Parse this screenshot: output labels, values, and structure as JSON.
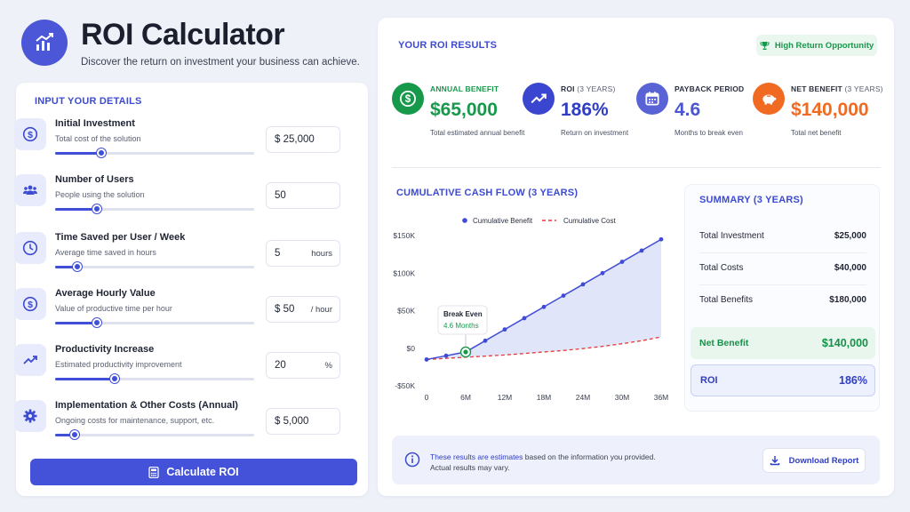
{
  "header": {
    "title": "ROI Calculator",
    "subtitle": "Discover the return on investment your business can achieve."
  },
  "inputs": {
    "section_title": "INPUT YOUR DETAILS",
    "items": [
      {
        "label": "Initial Investment",
        "desc": "Total cost of the solution",
        "value": "$ 25,000",
        "unit": "",
        "slider": 0.23,
        "icon": "dollar-icon"
      },
      {
        "label": "Number of Users",
        "desc": "People using the solution",
        "value": "50",
        "unit": "",
        "slider": 0.21,
        "icon": "users-icon"
      },
      {
        "label": "Time Saved per User / Week",
        "desc": "Average time saved in hours",
        "value": "5",
        "unit": "hours",
        "slider": 0.11,
        "icon": "clock-icon"
      },
      {
        "label": "Average Hourly Value",
        "desc": "Value of productive time per hour",
        "value": "$ 50",
        "unit": "/ hour",
        "slider": 0.21,
        "icon": "dollar-icon"
      },
      {
        "label": "Productivity Increase",
        "desc": "Estimated productivity improvement",
        "value": "20",
        "unit": "%",
        "slider": 0.3,
        "icon": "trend-up-icon"
      },
      {
        "label": "Implementation & Other Costs (Annual)",
        "desc": "Ongoing costs for maintenance, support, etc.",
        "value": "$ 5,000",
        "unit": "",
        "slider": 0.1,
        "icon": "gear-icon"
      }
    ],
    "calculate_label": "Calculate ROI"
  },
  "results": {
    "section_title": "YOUR ROI RESULTS",
    "badge": "High Return Opportunity",
    "metrics": [
      {
        "label": "ANNUAL BENEFIT",
        "label_suffix": "",
        "value": "$65,000",
        "desc": "Total estimated annual benefit",
        "color": "#17994b",
        "icon": "dollar-icon"
      },
      {
        "label": "ROI",
        "label_suffix": "(3 YEARS)",
        "value": "186%",
        "desc": "Return on investment",
        "color": "#2f3dc4",
        "icon": "trend-up-icon"
      },
      {
        "label": "PAYBACK PERIOD",
        "label_suffix": "",
        "value": "4.6",
        "desc": "Months to break even",
        "color": "#4a55cf",
        "icon": "calendar-icon"
      },
      {
        "label": "NET BENEFIT",
        "label_suffix": "(3 YEARS)",
        "value": "$140,000",
        "desc": "Total net benefit",
        "color": "#f06a22",
        "icon": "piggy-bank-icon"
      }
    ]
  },
  "chart_data": {
    "type": "line",
    "title": "CUMULATIVE CASH FLOW (3 YEARS)",
    "x": [
      0,
      3,
      6,
      9,
      12,
      15,
      18,
      21,
      24,
      27,
      30,
      33,
      36
    ],
    "x_tick_labels": [
      "0",
      "6M",
      "12M",
      "18M",
      "24M",
      "30M",
      "36M"
    ],
    "x_ticks": [
      0,
      6,
      12,
      18,
      24,
      30,
      36
    ],
    "y_tick_labels": [
      "$150K",
      "$100K",
      "$50K",
      "$0",
      "-$50K"
    ],
    "y_ticks": [
      150000,
      100000,
      50000,
      0,
      -50000
    ],
    "ylim": [
      -50000,
      150000
    ],
    "xlim": [
      0,
      36
    ],
    "series": [
      {
        "name": "Cumulative Benefit",
        "style": "solid-markers",
        "color": "#3f4bd4",
        "values": [
          -15000,
          -10000,
          -5000,
          10000,
          25000,
          40000,
          55000,
          70000,
          85000,
          100000,
          115000,
          130000,
          145000
        ]
      },
      {
        "name": "Cumulative Cost",
        "style": "dashed",
        "color": "#e53935",
        "values": [
          -15000,
          -13500,
          -12000,
          -10500,
          -9000,
          -7000,
          -5000,
          -3000,
          -500,
          2500,
          6000,
          10000,
          15000
        ]
      }
    ],
    "annotation": {
      "title": "Break Even",
      "value": "4.6 Months",
      "x": 6,
      "y": -5000
    },
    "legend": "top"
  },
  "summary": {
    "title": "SUMMARY (3 YEARS)",
    "rows": [
      {
        "label": "Total Investment",
        "value": "$25,000"
      },
      {
        "label": "Total Costs",
        "value": "$40,000"
      },
      {
        "label": "Total Benefits",
        "value": "$180,000"
      }
    ],
    "net_label": "Net Benefit",
    "net_value": "$140,000",
    "roi_label": "ROI",
    "roi_value": "186%"
  },
  "note": {
    "bold": "These results are estimates",
    "rest": " based on the information you provided.",
    "line2": "Actual results may vary.",
    "download_label": "Download Report"
  }
}
